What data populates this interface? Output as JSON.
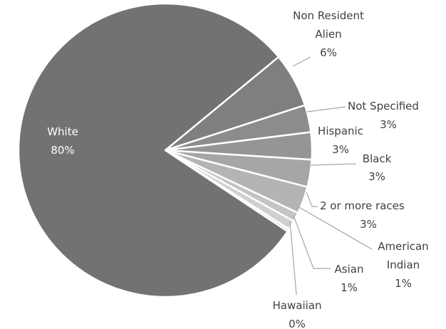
{
  "chart_data": {
    "type": "pie",
    "title": "",
    "start_angle_deg": 50.5,
    "direction": "clockwise",
    "slices": [
      {
        "name": "Non Resident Alien",
        "label_lines": [
          "Non Resident",
          "Alien"
        ],
        "value": 6,
        "value_label": "6%",
        "color": "#7f7f7f"
      },
      {
        "name": "Not Specified",
        "label_lines": [
          "Not Specified"
        ],
        "value": 3,
        "value_label": "3%",
        "color": "#8c8c8c"
      },
      {
        "name": "Hispanic",
        "label_lines": [
          "Hispanic"
        ],
        "value": 3,
        "value_label": "3%",
        "color": "#959595"
      },
      {
        "name": "Black",
        "label_lines": [
          "Black"
        ],
        "value": 3,
        "value_label": "3%",
        "color": "#a6a6a6"
      },
      {
        "name": "2 or more races",
        "label_lines": [
          "2 or more races"
        ],
        "value": 3,
        "value_label": "3%",
        "color": "#b4b4b4"
      },
      {
        "name": "American Indian",
        "label_lines": [
          "American",
          "Indian"
        ],
        "value": 1,
        "value_label": "1%",
        "color": "#c4c4c4"
      },
      {
        "name": "Asian",
        "label_lines": [
          "Asian"
        ],
        "value": 1,
        "value_label": "1%",
        "color": "#d0d0d0"
      },
      {
        "name": "Hawaiian",
        "label_lines": [
          "Hawaiian"
        ],
        "value": 0.3,
        "value_label": "0%",
        "color": "#dcdcdc"
      },
      {
        "name": "White",
        "label_lines": [
          "White"
        ],
        "value": 79.7,
        "value_label": "80%",
        "color": "#727272"
      }
    ]
  }
}
